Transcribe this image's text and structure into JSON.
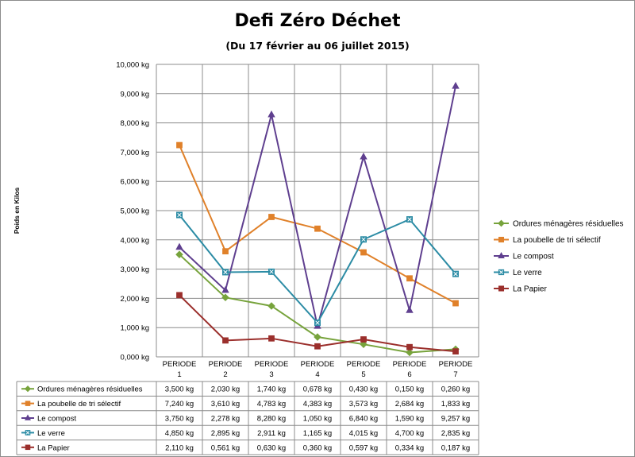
{
  "chart_data": {
    "type": "line",
    "title": "Defi Zéro Déchet",
    "subtitle": "(Du 17 février au 06 juillet 2015)",
    "ylabel": "Poids en Kilos",
    "xlabel": "",
    "ylim": [
      0,
      10000
    ],
    "ytick_step": 1000,
    "ytick_labels": [
      "0,000 kg",
      "1,000 kg",
      "2,000 kg",
      "3,000 kg",
      "4,000 kg",
      "5,000 kg",
      "6,000 kg",
      "7,000 kg",
      "8,000 kg",
      "9,000 kg",
      "10,000 kg"
    ],
    "grid": true,
    "legend_position": "right",
    "data_table": true,
    "categories": [
      {
        "line1": "PERIODE",
        "line2": "1"
      },
      {
        "line1": "PERIODE",
        "line2": "2"
      },
      {
        "line1": "PERIODE",
        "line2": "3"
      },
      {
        "line1": "PERIODE",
        "line2": "4"
      },
      {
        "line1": "PERIODE",
        "line2": "5"
      },
      {
        "line1": "PERIODE",
        "line2": "6"
      },
      {
        "line1": "PERIODE",
        "line2": "7"
      }
    ],
    "series": [
      {
        "name": "Ordures ménagères résiduelles",
        "color": "#77a33c",
        "marker": "diamond",
        "values": [
          3500,
          2030,
          1740,
          678,
          430,
          150,
          260
        ],
        "labels": [
          "3,500 kg",
          "2,030 kg",
          "1,740 kg",
          "0,678 kg",
          "0,430 kg",
          "0,150 kg",
          "0,260 kg"
        ]
      },
      {
        "name": "La poubelle de tri sélectif",
        "color": "#e0812a",
        "marker": "square",
        "values": [
          7240,
          3610,
          4783,
          4383,
          3573,
          2684,
          1833
        ],
        "labels": [
          "7,240 kg",
          "3,610 kg",
          "4,783 kg",
          "4,383 kg",
          "3,573 kg",
          "2,684 kg",
          "1,833 kg"
        ]
      },
      {
        "name": "Le compost",
        "color": "#5f3f8f",
        "marker": "triangle",
        "values": [
          3750,
          2278,
          8280,
          1050,
          6840,
          1590,
          9257
        ],
        "labels": [
          "3,750 kg",
          "2,278 kg",
          "8,280 kg",
          "1,050 kg",
          "6,840 kg",
          "1,590 kg",
          "9,257 kg"
        ]
      },
      {
        "name": "Le verre",
        "color": "#2c8ca5",
        "marker": "xsquare",
        "values": [
          4850,
          2895,
          2911,
          1165,
          4015,
          4700,
          2835
        ],
        "labels": [
          "4,850 kg",
          "2,895 kg",
          "2,911 kg",
          "1,165 kg",
          "4,015 kg",
          "4,700 kg",
          "2,835 kg"
        ]
      },
      {
        "name": "La Papier",
        "color": "#9b2f2c",
        "marker": "square",
        "values": [
          2110,
          561,
          630,
          360,
          597,
          334,
          187
        ],
        "labels": [
          "2,110 kg",
          "0,561 kg",
          "0,630 kg",
          "0,360 kg",
          "0,597 kg",
          "0,334 kg",
          "0,187 kg"
        ]
      }
    ]
  }
}
